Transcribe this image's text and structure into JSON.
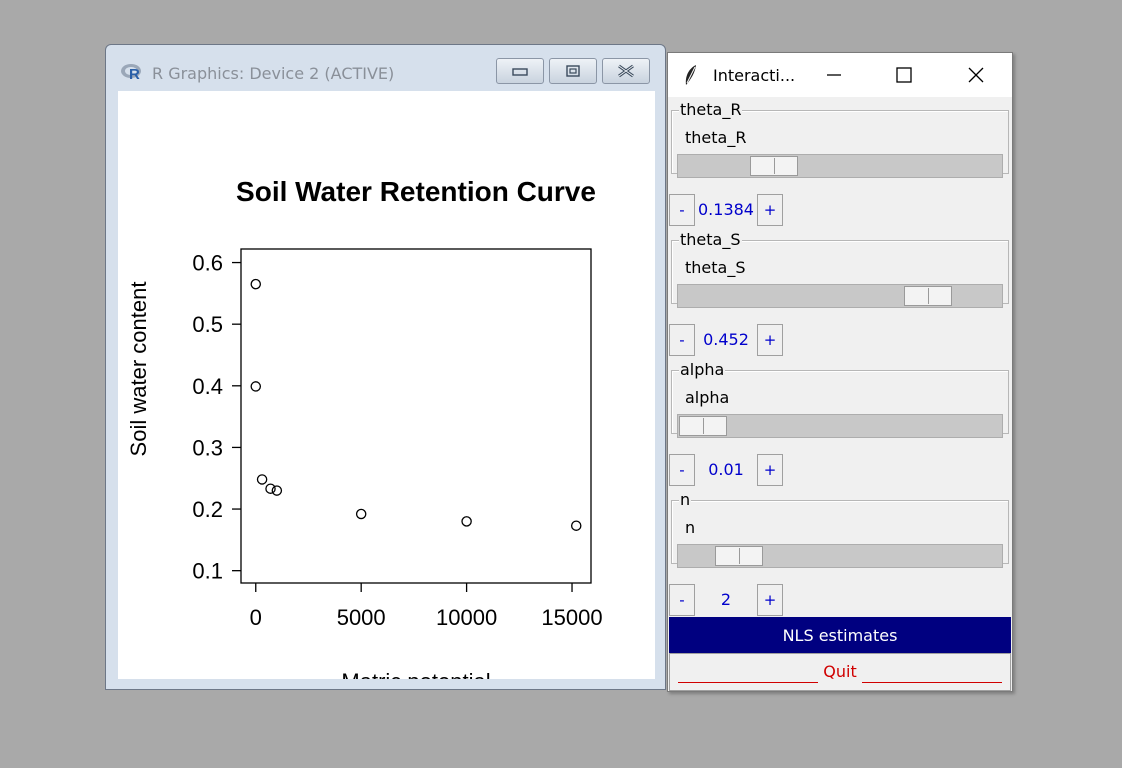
{
  "graphics_window": {
    "title": "R Graphics: Device 2 (ACTIVE)",
    "logo_icon": "r-logo-icon",
    "buttons": [
      "minimize-icon",
      "restore-icon",
      "close-icon"
    ]
  },
  "chart_data": {
    "type": "scatter",
    "title": "Soil Water Retention Curve",
    "xlabel": "Matric potential",
    "ylabel": "Soil water content",
    "xlim": [
      -700,
      15900
    ],
    "ylim": [
      0.08,
      0.622
    ],
    "xticks": [
      0,
      5000,
      10000,
      15000
    ],
    "xtick_labels": [
      "0",
      "5000",
      "10000",
      "15000"
    ],
    "yticks": [
      0.1,
      0.2,
      0.3,
      0.4,
      0.5,
      0.6
    ],
    "ytick_labels": [
      "0.1",
      "0.2",
      "0.3",
      "0.4",
      "0.5",
      "0.6"
    ],
    "grid": false,
    "marker": "open-circle",
    "points": [
      {
        "x": 0,
        "y": 0.565
      },
      {
        "x": 0,
        "y": 0.399
      },
      {
        "x": 300,
        "y": 0.248
      },
      {
        "x": 700,
        "y": 0.233
      },
      {
        "x": 1000,
        "y": 0.23
      },
      {
        "x": 5000,
        "y": 0.192
      },
      {
        "x": 10000,
        "y": 0.18
      },
      {
        "x": 15200,
        "y": 0.173
      }
    ]
  },
  "interactive_window": {
    "title": "Interacti...",
    "icon": "feather-icon",
    "controls": [
      "minimize-icon",
      "maximize-icon",
      "close-icon"
    ],
    "params": [
      {
        "group_label": "theta_R",
        "slider_label": "theta_R",
        "value": "0.1384",
        "position": 0.26,
        "minus": "-",
        "plus": "+"
      },
      {
        "group_label": "theta_S",
        "slider_label": "theta_S",
        "value": "0.452",
        "position": 0.82,
        "minus": "-",
        "plus": "+"
      },
      {
        "group_label": "alpha",
        "slider_label": "alpha",
        "value": "0.01",
        "position": 0.0,
        "minus": "-",
        "plus": "+"
      },
      {
        "group_label": "n",
        "slider_label": "n",
        "value": "2",
        "position": 0.13,
        "minus": "-",
        "plus": "+"
      }
    ],
    "nls_button": "NLS estimates",
    "quit_button": "Quit",
    "colors": {
      "nls_bg": "#000080",
      "quit_text": "#d00000",
      "stepper_text": "#0000cc"
    }
  }
}
